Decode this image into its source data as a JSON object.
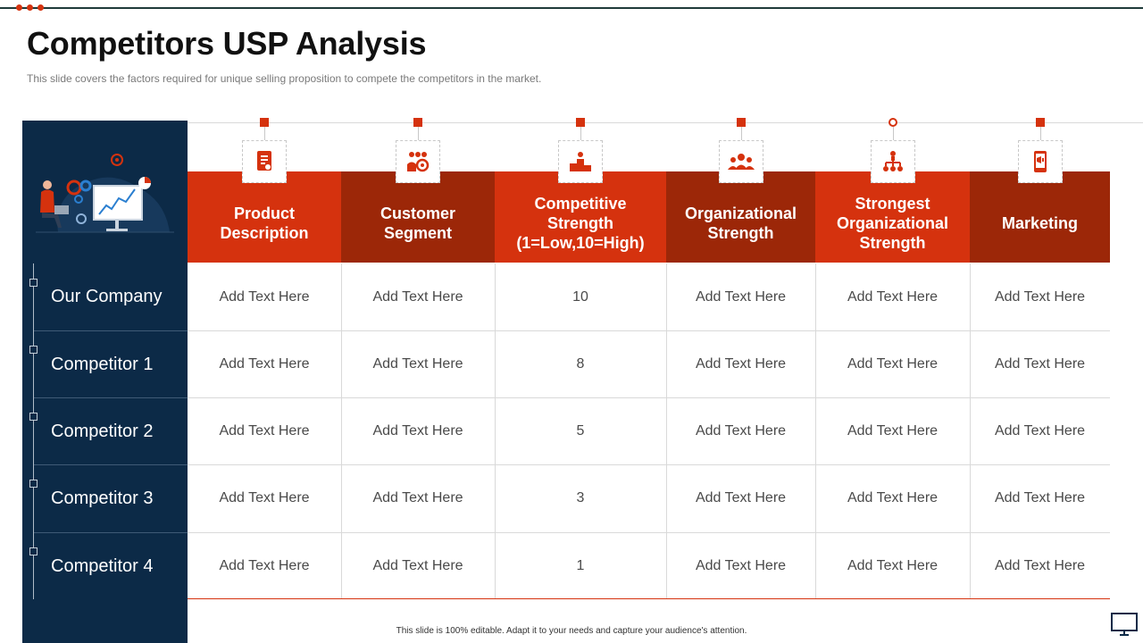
{
  "slide": {
    "title": "Competitors USP Analysis",
    "subtitle": "This slide covers the factors required for unique selling proposition to compete the competitors in the market.",
    "footer": "This slide is 100% editable. Adapt it to your needs and capture your audience's attention."
  },
  "colors": {
    "accent": "#d5320e",
    "accent_dark": "#9c2708",
    "navy": "#0c2a47"
  },
  "columns": [
    {
      "label": "Product Description",
      "icon": "document-icon"
    },
    {
      "label": "Customer Segment",
      "icon": "customer-group-icon"
    },
    {
      "label": "Competitive Strength (1=Low,10=High)",
      "icon": "podium-icon"
    },
    {
      "label": "Organizational Strength",
      "icon": "team-icon"
    },
    {
      "label": "Strongest Organizational Strength",
      "icon": "org-chart-icon"
    },
    {
      "label": "Marketing",
      "icon": "mobile-marketing-icon"
    }
  ],
  "rows": [
    {
      "name": "Our Company",
      "cells": [
        "Add Text Here",
        "Add Text Here",
        "10",
        "Add Text Here",
        "Add Text Here",
        "Add Text Here"
      ]
    },
    {
      "name": "Competitor 1",
      "cells": [
        "Add Text Here",
        "Add Text Here",
        "8",
        "Add Text Here",
        "Add Text Here",
        "Add Text Here"
      ]
    },
    {
      "name": "Competitor 2",
      "cells": [
        "Add Text Here",
        "Add Text Here",
        "5",
        "Add Text Here",
        "Add Text Here",
        "Add Text Here"
      ]
    },
    {
      "name": "Competitor 3",
      "cells": [
        "Add Text Here",
        "Add Text Here",
        "3",
        "Add Text Here",
        "Add Text Here",
        "Add Text Here"
      ]
    },
    {
      "name": "Competitor 4",
      "cells": [
        "Add Text Here",
        "Add Text Here",
        "1",
        "Add Text Here",
        "Add Text Here",
        "Add Text Here"
      ]
    }
  ]
}
